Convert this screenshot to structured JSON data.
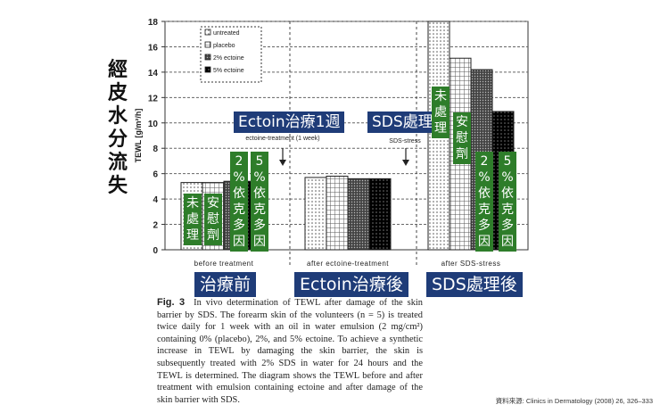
{
  "side_title": [
    "經",
    "皮",
    "水",
    "分",
    "流",
    "失"
  ],
  "annotations": {
    "ectoin_1week": "Ectoin治療1週",
    "sds_treatment": "SDS處理",
    "before": "治療前",
    "after_ectoin": "Ectoin治療後",
    "after_sds": "SDS處理後"
  },
  "green_labels": {
    "untreated": [
      "未",
      "處",
      "理"
    ],
    "placebo": [
      "安",
      "慰",
      "劑"
    ],
    "ectoine2": [
      "2",
      "%",
      "依",
      "克",
      "多",
      "因"
    ],
    "ectoine5": [
      "5",
      "%",
      "依",
      "克",
      "多",
      "因"
    ]
  },
  "chart_data": {
    "type": "bar",
    "ylabel": "TEWL [g/m²/h]",
    "ylim": [
      0,
      18
    ],
    "yticks": [
      0,
      2,
      4,
      6,
      8,
      10,
      12,
      14,
      16,
      18
    ],
    "grid": true,
    "categories": [
      "before treatment",
      "after ectoine-treatment",
      "after SDS-stress"
    ],
    "series": [
      {
        "name": "untreated",
        "values": [
          5.3,
          5.7,
          18.0
        ]
      },
      {
        "name": "placebo",
        "values": [
          5.3,
          5.8,
          15.1
        ]
      },
      {
        "name": "2% ectoine",
        "values": [
          5.4,
          5.6,
          14.2
        ]
      },
      {
        "name": "5% ectoine",
        "values": [
          5.4,
          5.6,
          10.9
        ]
      }
    ],
    "legend_position": "top-left",
    "chart_annotations": [
      {
        "text": "ectoine-treatment (1 week)"
      },
      {
        "text": "SDS-stress"
      }
    ]
  },
  "caption": {
    "fig": "Fig. 3",
    "text": "In vivo determination of TEWL after damage of the skin barrier by SDS. The forearm skin of the volunteers (n = 5) is treated twice daily for 1 week with an oil in water emulsion (2 mg/cm²) containing 0% (placebo), 2%, and 5% ectoine. To achieve a synthetic increase in TEWL by damaging the skin barrier, the skin is subsequently treated with 2% SDS in water for 24 hours and the TEWL is determined. The diagram shows the TEWL before and after treatment with emulsion containing ectoine and after damage of the skin barrier with SDS."
  },
  "source": "資料來源: Clinics in Dermatology (2008) 26, 326–333",
  "colors": {
    "blue": "#1f3c78",
    "green": "#2e7d2a"
  }
}
